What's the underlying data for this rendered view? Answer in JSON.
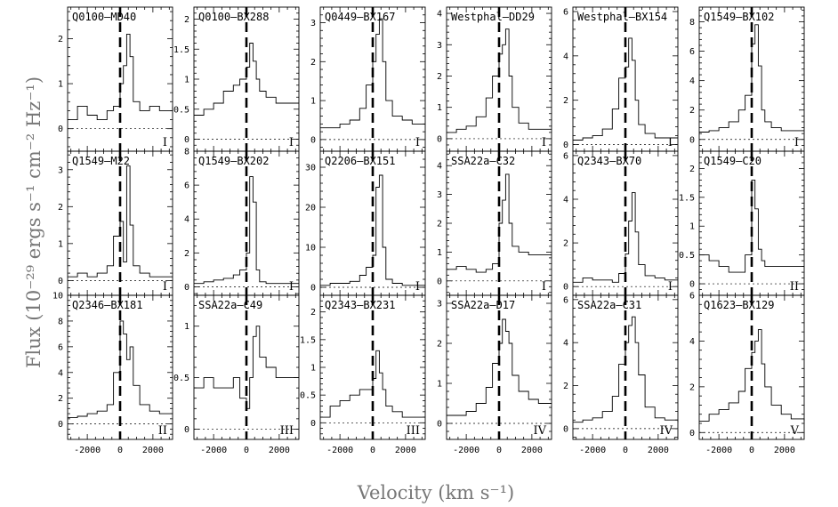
{
  "figure": {
    "xlabel": "Velocity (km s⁻¹)",
    "ylabel": "Flux (10⁻²⁹ ergs s⁻¹ cm⁻² Hz⁻¹)"
  },
  "chart_data": [
    {
      "type": "line",
      "title": "Q0100–MD40",
      "class": "I",
      "ylim": [
        -0.5,
        2.7
      ],
      "yticks": [
        0,
        1,
        2
      ],
      "xlim": [
        -3200,
        3200
      ],
      "xticks": [
        -2000,
        0,
        2000
      ],
      "series": [
        {
          "x": [
            -3200,
            -2600,
            -2000,
            -1400,
            -800,
            -400,
            0,
            200,
            400,
            600,
            800,
            1200,
            1800,
            2400,
            3200
          ],
          "values": [
            0.2,
            0.5,
            0.3,
            0.2,
            0.4,
            0.5,
            1.0,
            1.4,
            2.1,
            1.6,
            0.6,
            0.4,
            0.5,
            0.4,
            0.5
          ]
        }
      ]
    },
    {
      "type": "line",
      "title": "Q0100–BX288",
      "class": "I",
      "ylim": [
        -0.2,
        2.2
      ],
      "yticks": [
        0,
        0.5,
        1,
        1.5,
        2
      ],
      "xlim": [
        -3200,
        3200
      ],
      "xticks": [
        -2000,
        0,
        2000
      ],
      "series": [
        {
          "x": [
            -3200,
            -2600,
            -2000,
            -1400,
            -800,
            -400,
            0,
            200,
            400,
            600,
            800,
            1200,
            1800,
            2400,
            3200
          ],
          "values": [
            0.4,
            0.5,
            0.6,
            0.8,
            0.9,
            1.0,
            1.2,
            1.6,
            1.3,
            1.0,
            0.8,
            0.7,
            0.6,
            0.6,
            0.6
          ]
        }
      ]
    },
    {
      "type": "line",
      "title": "Q0449–BX167",
      "class": "I",
      "ylim": [
        -0.3,
        3.4
      ],
      "yticks": [
        0,
        1,
        2,
        3
      ],
      "xlim": [
        -3200,
        3200
      ],
      "xticks": [
        -2000,
        0,
        2000
      ],
      "series": [
        {
          "x": [
            -3200,
            -2600,
            -2000,
            -1400,
            -800,
            -400,
            0,
            200,
            400,
            600,
            800,
            1200,
            1800,
            2400,
            3200
          ],
          "values": [
            0.3,
            0.3,
            0.4,
            0.5,
            0.8,
            1.4,
            2.0,
            2.7,
            3.1,
            2.0,
            1.0,
            0.6,
            0.5,
            0.4,
            0.4
          ]
        }
      ]
    },
    {
      "type": "line",
      "title": "Westphal–DD29",
      "class": "I",
      "ylim": [
        -0.4,
        4.2
      ],
      "yticks": [
        0,
        1,
        2,
        3,
        4
      ],
      "xlim": [
        -3200,
        3200
      ],
      "xticks": [
        -2000,
        0,
        2000
      ],
      "series": [
        {
          "x": [
            -3200,
            -2600,
            -2000,
            -1400,
            -800,
            -400,
            0,
            200,
            400,
            600,
            800,
            1200,
            1800,
            2400,
            3200
          ],
          "values": [
            0.2,
            0.3,
            0.4,
            0.7,
            1.3,
            2.0,
            2.7,
            3.0,
            3.5,
            2.0,
            1.0,
            0.5,
            0.3,
            0.3,
            0.3
          ]
        }
      ]
    },
    {
      "type": "line",
      "title": "Westphal–BX154",
      "class": "I",
      "ylim": [
        -0.3,
        6.2
      ],
      "yticks": [
        0,
        2,
        4,
        6
      ],
      "xlim": [
        -3200,
        3200
      ],
      "xticks": [
        -2000,
        0,
        2000
      ],
      "series": [
        {
          "x": [
            -3200,
            -2600,
            -2000,
            -1400,
            -800,
            -400,
            0,
            200,
            400,
            600,
            800,
            1200,
            1800,
            2400,
            3200
          ],
          "values": [
            0.2,
            0.3,
            0.4,
            0.7,
            1.6,
            3.0,
            3.5,
            4.8,
            3.8,
            2.0,
            0.9,
            0.5,
            0.3,
            0.3,
            0.3
          ]
        }
      ]
    },
    {
      "type": "line",
      "title": "Q1549–BX102",
      "class": "I",
      "ylim": [
        -0.8,
        9.0
      ],
      "yticks": [
        0,
        2,
        4,
        6,
        8
      ],
      "xlim": [
        -3200,
        3200
      ],
      "xticks": [
        -2000,
        0,
        2000
      ],
      "series": [
        {
          "x": [
            -3200,
            -2600,
            -2000,
            -1400,
            -800,
            -400,
            0,
            200,
            400,
            600,
            800,
            1200,
            1800,
            2400,
            3200
          ],
          "values": [
            0.5,
            0.6,
            0.8,
            1.2,
            2.0,
            3.0,
            6.5,
            7.8,
            5.0,
            2.0,
            1.2,
            0.8,
            0.6,
            0.6,
            0.6
          ]
        }
      ]
    },
    {
      "type": "line",
      "title": "Q1549–M22",
      "class": "I",
      "ylim": [
        -0.4,
        3.5
      ],
      "yticks": [
        0,
        1,
        2,
        3
      ],
      "xlim": [
        -3200,
        3200
      ],
      "xticks": [
        -2000,
        0,
        2000
      ],
      "series": [
        {
          "x": [
            -3200,
            -2600,
            -2000,
            -1400,
            -800,
            -400,
            0,
            200,
            400,
            600,
            800,
            1200,
            1800,
            2400,
            3200
          ],
          "values": [
            0.1,
            0.2,
            0.1,
            0.2,
            0.4,
            1.2,
            1.6,
            0.5,
            3.1,
            1.5,
            0.4,
            0.2,
            0.1,
            0.1,
            0.1
          ]
        }
      ]
    },
    {
      "type": "line",
      "title": "Q1549–BX202",
      "class": "I",
      "ylim": [
        -0.5,
        8.0
      ],
      "yticks": [
        0,
        2,
        4,
        6,
        8
      ],
      "xlim": [
        -3200,
        3200
      ],
      "xticks": [
        -2000,
        0,
        2000
      ],
      "series": [
        {
          "x": [
            -3200,
            -2600,
            -2000,
            -1400,
            -800,
            -400,
            0,
            200,
            400,
            600,
            800,
            1200,
            1800,
            2400,
            3200
          ],
          "values": [
            0.2,
            0.3,
            0.4,
            0.5,
            0.7,
            1.0,
            2.0,
            6.5,
            5.0,
            1.0,
            0.3,
            0.2,
            0.2,
            0.2,
            0.2
          ]
        }
      ]
    },
    {
      "type": "line",
      "title": "Q2206–BX151",
      "class": "I",
      "ylim": [
        -2,
        34
      ],
      "yticks": [
        0,
        10,
        20,
        30
      ],
      "xlim": [
        -3200,
        3200
      ],
      "xticks": [
        -2000,
        0,
        2000
      ],
      "series": [
        {
          "x": [
            -3200,
            -2600,
            -2000,
            -1400,
            -800,
            -400,
            0,
            200,
            400,
            600,
            800,
            1200,
            1800,
            2400,
            3200
          ],
          "values": [
            0.5,
            1.0,
            1.0,
            1.5,
            3.0,
            5.0,
            8.0,
            25.0,
            28.0,
            10.0,
            2.0,
            1.0,
            0.5,
            0.5,
            0.5
          ]
        }
      ]
    },
    {
      "type": "line",
      "title": "SSA22a–C32",
      "class": "I",
      "ylim": [
        -0.5,
        4.5
      ],
      "yticks": [
        0,
        1,
        2,
        3,
        4
      ],
      "xlim": [
        -3200,
        3200
      ],
      "xticks": [
        -2000,
        0,
        2000
      ],
      "series": [
        {
          "x": [
            -3200,
            -2600,
            -2000,
            -1400,
            -800,
            -400,
            0,
            200,
            400,
            600,
            800,
            1200,
            1800,
            2400,
            3200
          ],
          "values": [
            0.4,
            0.5,
            0.4,
            0.3,
            0.4,
            0.6,
            2.0,
            2.8,
            3.7,
            2.0,
            1.2,
            1.0,
            0.9,
            0.9,
            0.9
          ]
        }
      ]
    },
    {
      "type": "line",
      "title": "Q2343–BX70",
      "class": "I",
      "ylim": [
        -0.4,
        6.2
      ],
      "yticks": [
        0,
        2,
        4,
        6
      ],
      "xlim": [
        -3200,
        3200
      ],
      "xticks": [
        -2000,
        0,
        2000
      ],
      "series": [
        {
          "x": [
            -3200,
            -2600,
            -2000,
            -1400,
            -800,
            -400,
            0,
            200,
            400,
            600,
            800,
            1200,
            1800,
            2400,
            3200
          ],
          "values": [
            0.2,
            0.4,
            0.3,
            0.3,
            0.2,
            0.6,
            1.5,
            3.0,
            4.3,
            2.5,
            1.0,
            0.5,
            0.4,
            0.3,
            0.3
          ]
        }
      ]
    },
    {
      "type": "line",
      "title": "Q1549–C20",
      "class": "II",
      "ylim": [
        -0.2,
        2.3
      ],
      "yticks": [
        0,
        0.5,
        1,
        1.5,
        2
      ],
      "xlim": [
        -3200,
        3200
      ],
      "xticks": [
        -2000,
        0,
        2000
      ],
      "series": [
        {
          "x": [
            -3200,
            -2600,
            -2000,
            -1400,
            -800,
            -400,
            0,
            200,
            400,
            600,
            800,
            1200,
            1800,
            2400,
            3200
          ],
          "values": [
            0.5,
            0.4,
            0.3,
            0.2,
            0.2,
            0.5,
            1.8,
            1.3,
            0.6,
            0.4,
            0.3,
            0.3,
            0.3,
            0.3,
            0.3
          ]
        }
      ]
    },
    {
      "type": "line",
      "title": "Q2346–BX181",
      "class": "II",
      "ylim": [
        -1.2,
        10.0
      ],
      "yticks": [
        0,
        2,
        4,
        6,
        8,
        10
      ],
      "xlim": [
        -3200,
        3200
      ],
      "xticks": [
        -2000,
        0,
        2000
      ],
      "series": [
        {
          "x": [
            -3200,
            -2600,
            -2000,
            -1400,
            -800,
            -400,
            0,
            200,
            400,
            600,
            800,
            1200,
            1800,
            2400,
            3200
          ],
          "values": [
            0.5,
            0.6,
            0.8,
            1.0,
            1.5,
            4.0,
            8.0,
            7.0,
            5.0,
            6.0,
            3.0,
            1.5,
            1.0,
            0.8,
            0.8
          ]
        }
      ]
    },
    {
      "type": "line",
      "title": "SSA22a–C49",
      "class": "III",
      "ylim": [
        -0.1,
        1.3
      ],
      "yticks": [
        0,
        0.5,
        1
      ],
      "xlim": [
        -3200,
        3200
      ],
      "xticks": [
        -2000,
        0,
        2000
      ],
      "series": [
        {
          "x": [
            -3200,
            -2600,
            -2000,
            -1400,
            -800,
            -400,
            0,
            200,
            400,
            600,
            800,
            1200,
            1800,
            2400,
            3200
          ],
          "values": [
            0.4,
            0.5,
            0.4,
            0.4,
            0.5,
            0.3,
            0.2,
            0.5,
            0.9,
            1.0,
            0.7,
            0.6,
            0.5,
            0.5,
            0.5
          ]
        }
      ]
    },
    {
      "type": "line",
      "title": "Q2343–BX231",
      "class": "III",
      "ylim": [
        -0.3,
        2.3
      ],
      "yticks": [
        0,
        0.5,
        1,
        1.5,
        2
      ],
      "xlim": [
        -3200,
        3200
      ],
      "xticks": [
        -2000,
        0,
        2000
      ],
      "series": [
        {
          "x": [
            -3200,
            -2600,
            -2000,
            -1400,
            -800,
            -400,
            0,
            200,
            400,
            600,
            800,
            1200,
            1800,
            2400,
            3200
          ],
          "values": [
            0.1,
            0.3,
            0.4,
            0.5,
            0.6,
            0.6,
            0.8,
            1.3,
            0.9,
            0.6,
            0.3,
            0.2,
            0.1,
            0.1,
            0.1
          ]
        }
      ]
    },
    {
      "type": "line",
      "title": "SSA22a–D17",
      "class": "IV",
      "ylim": [
        -0.4,
        3.2
      ],
      "yticks": [
        0,
        1,
        2,
        3
      ],
      "xlim": [
        -3200,
        3200
      ],
      "xticks": [
        -2000,
        0,
        2000
      ],
      "series": [
        {
          "x": [
            -3200,
            -2600,
            -2000,
            -1400,
            -800,
            -400,
            0,
            200,
            400,
            600,
            800,
            1200,
            1800,
            2400,
            3200
          ],
          "values": [
            0.2,
            0.2,
            0.3,
            0.5,
            0.9,
            1.5,
            2.0,
            2.6,
            2.3,
            2.0,
            1.2,
            0.8,
            0.6,
            0.5,
            0.5
          ]
        }
      ]
    },
    {
      "type": "line",
      "title": "SSA22a–C31",
      "class": "IV",
      "ylim": [
        -0.5,
        6.2
      ],
      "yticks": [
        0,
        2,
        4,
        6
      ],
      "xlim": [
        -3200,
        3200
      ],
      "xticks": [
        -2000,
        0,
        2000
      ],
      "series": [
        {
          "x": [
            -3200,
            -2600,
            -2000,
            -1400,
            -800,
            -400,
            0,
            200,
            400,
            600,
            800,
            1200,
            1800,
            2400,
            3200
          ],
          "values": [
            0.3,
            0.4,
            0.5,
            0.8,
            1.5,
            3.0,
            4.0,
            4.8,
            5.2,
            4.0,
            2.5,
            1.0,
            0.5,
            0.4,
            0.3
          ]
        }
      ]
    },
    {
      "type": "line",
      "title": "Q1623–BX129",
      "class": "V",
      "ylim": [
        -0.3,
        6.0
      ],
      "yticks": [
        0,
        2,
        4,
        6
      ],
      "xlim": [
        -3200,
        3200
      ],
      "xticks": [
        -2000,
        0,
        2000
      ],
      "series": [
        {
          "x": [
            -3200,
            -2600,
            -2000,
            -1400,
            -800,
            -400,
            0,
            200,
            400,
            600,
            800,
            1200,
            1800,
            2400,
            3200
          ],
          "values": [
            0.5,
            0.8,
            1.0,
            1.3,
            1.8,
            2.8,
            3.5,
            4.0,
            4.5,
            3.0,
            2.0,
            1.2,
            0.8,
            0.6,
            0.5
          ]
        }
      ]
    }
  ]
}
